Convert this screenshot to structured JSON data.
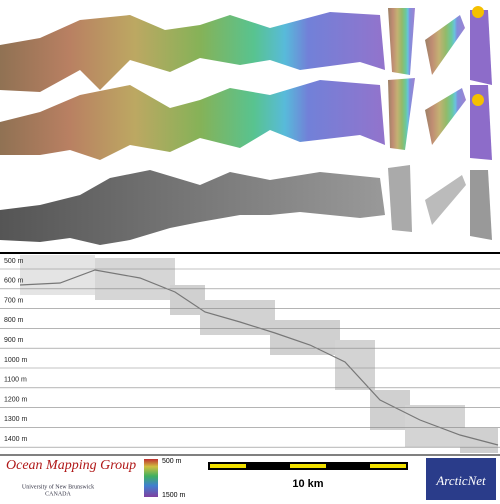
{
  "profile": {
    "depth_labels": [
      "500 m",
      "600 m",
      "700 m",
      "800 m",
      "900 m",
      "1000 m",
      "1100 m",
      "1200 m",
      "1300 m",
      "1400 m"
    ]
  },
  "footer": {
    "logo_title": "Ocean Mapping Group",
    "logo_university": "University of New Brunswick",
    "logo_country": "CANADA",
    "colorbar_top": "500 m",
    "colorbar_bottom": "1500 m",
    "scale_label": "10 km",
    "partner_logo": "ArcticNet"
  }
}
